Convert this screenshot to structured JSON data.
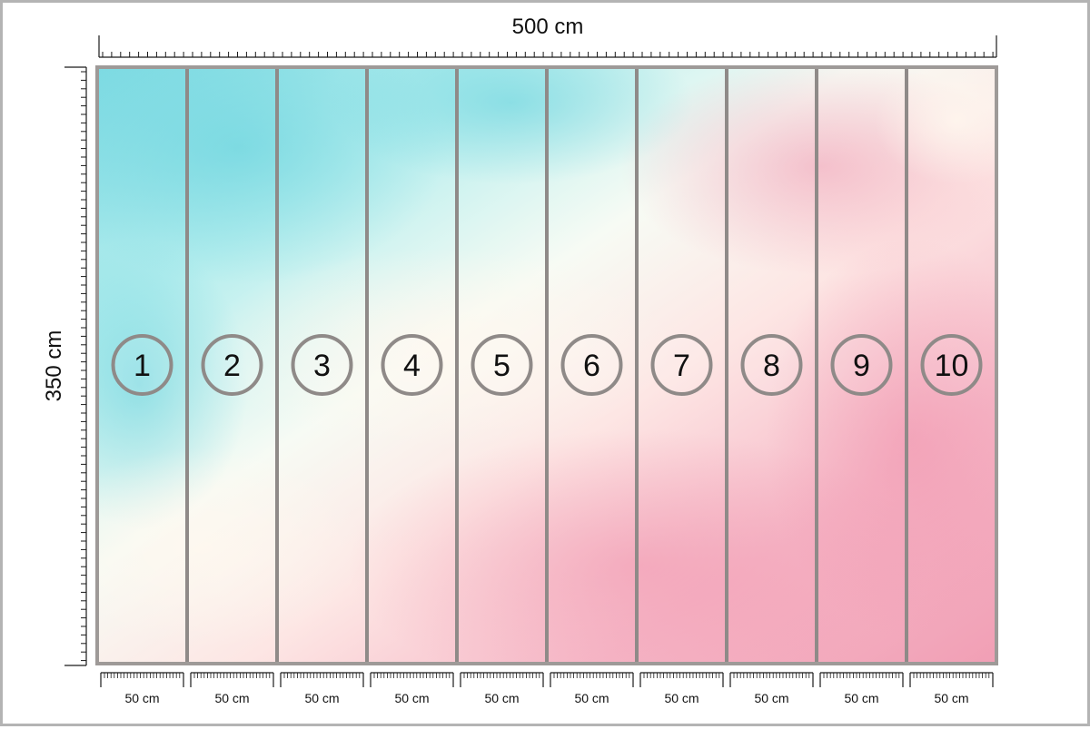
{
  "width_label": "500 cm",
  "height_label": "350 cm",
  "panels": [
    {
      "number": "1",
      "width_label": "50 cm"
    },
    {
      "number": "2",
      "width_label": "50 cm"
    },
    {
      "number": "3",
      "width_label": "50 cm"
    },
    {
      "number": "4",
      "width_label": "50 cm"
    },
    {
      "number": "5",
      "width_label": "50 cm"
    },
    {
      "number": "6",
      "width_label": "50 cm"
    },
    {
      "number": "7",
      "width_label": "50 cm"
    },
    {
      "number": "8",
      "width_label": "50 cm"
    },
    {
      "number": "9",
      "width_label": "50 cm"
    },
    {
      "number": "10",
      "width_label": "50 cm"
    }
  ],
  "colors": {
    "frame": "#9e9a98",
    "panel_divider": "#8f8a88",
    "ruler": "#1a1a1a",
    "turquoise": "#8ee3e8",
    "cream": "#fdf1e6",
    "pink": "#f4a7bd"
  }
}
